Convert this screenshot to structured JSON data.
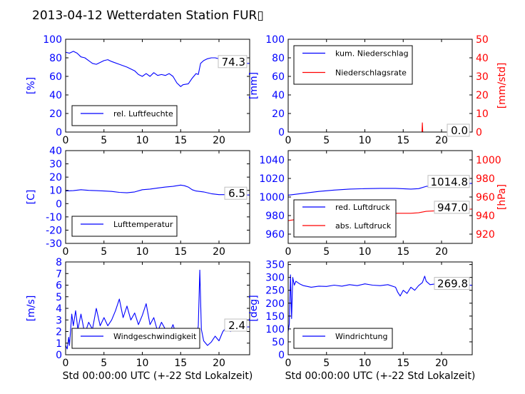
{
  "title": "2013-04-12 Wetterdaten Station FUR▯",
  "colors": {
    "primary": "#0000ff",
    "secondary": "#ff0000",
    "frame": "#000000",
    "label_box": "#bfbfbf"
  },
  "chart_data": [
    {
      "id": "humidity",
      "type": "line",
      "ylabel": "[%]",
      "ylim": [
        0,
        100
      ],
      "yticks": [
        0,
        20,
        40,
        60,
        80,
        100
      ],
      "xlim": [
        0,
        24
      ],
      "xticks": [
        0,
        5,
        10,
        15,
        20
      ],
      "xlabel": "",
      "legend": {
        "placement": "lower-left",
        "entries": [
          "rel. Luftfeuchte"
        ]
      },
      "last_value_label": "74.3",
      "series": [
        {
          "name": "rel. Luftfeuchte",
          "color": "#0000ff",
          "x": [
            0,
            0.5,
            1,
            1.5,
            2,
            2.5,
            3,
            3.5,
            4,
            5,
            5.5,
            6,
            7,
            8,
            9,
            9.5,
            10,
            10.5,
            11,
            11.5,
            12,
            12.5,
            13,
            13.5,
            14,
            14.5,
            15,
            15.3,
            16,
            16.5,
            17,
            17.3,
            17.6,
            18,
            18.5,
            19,
            19.5,
            20,
            21,
            22,
            23,
            24
          ],
          "y": [
            86,
            85,
            87,
            85,
            81,
            80,
            77,
            74,
            73,
            77,
            78,
            76,
            73,
            70,
            66,
            62,
            60,
            63,
            60,
            64,
            61,
            62,
            61,
            63,
            60,
            53,
            49,
            51,
            52,
            58,
            63,
            62,
            74,
            77,
            79,
            80,
            80,
            79,
            74,
            74,
            74,
            74
          ]
        }
      ]
    },
    {
      "id": "precipitation",
      "type": "line",
      "ylabel": "[mm]",
      "ylim": [
        0,
        100
      ],
      "yticks": [
        0,
        20,
        40,
        60,
        80,
        100
      ],
      "y2label": "[mm/std]",
      "y2lim": [
        0,
        50
      ],
      "y2ticks": [
        0,
        10,
        20,
        30,
        40,
        50
      ],
      "xlim": [
        0,
        24
      ],
      "xticks": [
        0,
        5,
        10,
        15,
        20
      ],
      "xlabel": "",
      "legend": {
        "placement": "top-left",
        "entries": [
          "kum. Niederschlag",
          "Niederschlagsrate"
        ]
      },
      "last_value_label": "0.0",
      "last_value_label_2": "0.0",
      "series": [
        {
          "name": "kum. Niederschlag",
          "axis": "left",
          "color": "#0000ff",
          "x": [
            0,
            24
          ],
          "y": [
            0,
            0
          ]
        },
        {
          "name": "Niederschlagsrate",
          "axis": "right",
          "color": "#ff0000",
          "x": [
            0,
            17.45,
            17.5,
            17.55,
            24
          ],
          "y": [
            0,
            0,
            5,
            0,
            0
          ]
        }
      ]
    },
    {
      "id": "temperature",
      "type": "line",
      "ylabel": "[C]",
      "ylim": [
        -30,
        40
      ],
      "yticks": [
        -30,
        -20,
        -10,
        0,
        10,
        20,
        30,
        40
      ],
      "xlim": [
        0,
        24
      ],
      "xticks": [
        0,
        5,
        10,
        15,
        20
      ],
      "xlabel": "",
      "legend": {
        "placement": "lower-left",
        "entries": [
          "Lufttemperatur"
        ]
      },
      "last_value_label": "6.5",
      "series": [
        {
          "name": "Lufttemperatur",
          "color": "#0000ff",
          "x": [
            0,
            1,
            2,
            3,
            4,
            5,
            6,
            7,
            8,
            9,
            10,
            11,
            12,
            13,
            14,
            15,
            15.5,
            16,
            16.5,
            17,
            18,
            19,
            20,
            21,
            22,
            23,
            24
          ],
          "y": [
            9.5,
            9.8,
            10.5,
            10,
            9.8,
            9.5,
            9.2,
            8.5,
            8.2,
            8.8,
            10.5,
            11,
            11.8,
            12.5,
            13,
            14,
            13.5,
            12.5,
            10.5,
            9.5,
            8.8,
            7.5,
            6.8,
            6.8,
            6.5,
            6.5,
            6.5
          ]
        }
      ]
    },
    {
      "id": "pressure",
      "type": "line",
      "ylabel": "",
      "ylim": [
        950,
        1050
      ],
      "yticks": [
        960,
        980,
        1000,
        1020,
        1040
      ],
      "y2label": "[hPa]",
      "y2lim": [
        910,
        1010
      ],
      "y2ticks": [
        920,
        940,
        960,
        980,
        1000
      ],
      "xlim": [
        0,
        24
      ],
      "xticks": [
        0,
        5,
        10,
        15,
        20
      ],
      "xlabel": "",
      "legend": {
        "placement": "lower-left",
        "entries": [
          "red. Luftdruck",
          "abs. Luftdruck"
        ]
      },
      "last_value_label": "1014.8",
      "last_value_label_2": "947.0",
      "series": [
        {
          "name": "red. Luftdruck",
          "axis": "left",
          "color": "#0000ff",
          "x": [
            0,
            2,
            4,
            6,
            8,
            10,
            12,
            14,
            16,
            17,
            18,
            20,
            22,
            24
          ],
          "y": [
            1002,
            1004,
            1006,
            1007.5,
            1008.5,
            1009,
            1009.3,
            1009.3,
            1008.5,
            1009,
            1011.5,
            1012.5,
            1013.5,
            1014.8
          ]
        },
        {
          "name": "abs. Luftdruck",
          "axis": "right",
          "color": "#ff0000",
          "x": [
            0,
            2,
            4,
            6,
            8,
            10,
            12,
            14,
            16,
            17,
            18,
            20,
            22,
            24
          ],
          "y": [
            934.5,
            937,
            939,
            940,
            941,
            942,
            942.5,
            942.5,
            942.5,
            943,
            944.5,
            945.5,
            946.2,
            947
          ]
        }
      ]
    },
    {
      "id": "windspeed",
      "type": "line",
      "ylabel": "[m/s]",
      "ylim": [
        0,
        8
      ],
      "yticks": [
        0,
        1,
        2,
        3,
        4,
        5,
        6,
        7,
        8
      ],
      "xlim": [
        0,
        24
      ],
      "xticks": [
        0,
        5,
        10,
        15,
        20
      ],
      "xlabel": "Std 00:00:00 UTC (+-22 Std Lokalzeit)",
      "legend": {
        "placement": "lower-left",
        "entries": [
          "Windgeschwindigkeit"
        ]
      },
      "last_value_label": "2.4",
      "series": [
        {
          "name": "Windgeschwindigkeit",
          "color": "#0000ff",
          "x": [
            0,
            0.2,
            0.4,
            0.5,
            0.8,
            1,
            1.3,
            1.6,
            2,
            2.5,
            3,
            3.5,
            4,
            4.5,
            5,
            5.5,
            6,
            6.5,
            7,
            7.5,
            8,
            8.5,
            9,
            9.5,
            10,
            10.5,
            11,
            11.5,
            12,
            12.5,
            13,
            13.5,
            14,
            14.5,
            15,
            15.5,
            16,
            16.5,
            17,
            17.3,
            17.5,
            17.7,
            18,
            18.5,
            19,
            19.5,
            20,
            20.5,
            21,
            21.5,
            22,
            22.5,
            23,
            23.5,
            24
          ],
          "y": [
            0.8,
            0.5,
            1.5,
            0.8,
            3.5,
            2.5,
            3.8,
            2.2,
            3.5,
            1.8,
            2.8,
            2.2,
            4,
            2.5,
            3.2,
            2.5,
            3,
            3.8,
            4.8,
            3.2,
            4.2,
            3,
            3.6,
            2.6,
            3.4,
            4.4,
            2.6,
            3.2,
            2,
            2.8,
            2.2,
            1.8,
            2.6,
            1.6,
            2.2,
            1.2,
            1.8,
            1.4,
            1.2,
            2.5,
            7.3,
            2.2,
            1.2,
            0.8,
            1.1,
            1.6,
            1.2,
            2,
            2.4,
            2,
            2.3,
            2.6,
            2.5,
            2.4,
            2.4
          ]
        }
      ]
    },
    {
      "id": "winddirection",
      "type": "line",
      "ylabel": "[deg]",
      "ylim": [
        0,
        360
      ],
      "yticks": [
        0,
        50,
        100,
        150,
        200,
        250,
        300,
        350
      ],
      "xlim": [
        0,
        24
      ],
      "xticks": [
        0,
        5,
        10,
        15,
        20
      ],
      "xlabel": "Std 00:00:00 UTC (+-22 Std Lokalzeit)",
      "legend": {
        "placement": "lower-left",
        "entries": [
          "Windrichtung"
        ]
      },
      "last_value_label": "269.8",
      "series": [
        {
          "name": "Windrichtung",
          "color": "#0000ff",
          "x": [
            0,
            0.15,
            0.3,
            0.45,
            0.6,
            0.8,
            1,
            1.5,
            2,
            3,
            4,
            5,
            6,
            7,
            8,
            9,
            10,
            11,
            12,
            13,
            14,
            14.3,
            14.6,
            15,
            15.5,
            16,
            16.5,
            17,
            17.5,
            17.8,
            18,
            18.5,
            19,
            20,
            21,
            22,
            23,
            24
          ],
          "y": [
            90,
            120,
            310,
            140,
            300,
            270,
            285,
            275,
            268,
            262,
            266,
            265,
            270,
            266,
            272,
            268,
            275,
            270,
            268,
            272,
            262,
            242,
            228,
            250,
            238,
            262,
            250,
            268,
            280,
            305,
            285,
            272,
            274,
            268,
            272,
            266,
            270,
            269.8
          ]
        }
      ]
    }
  ]
}
